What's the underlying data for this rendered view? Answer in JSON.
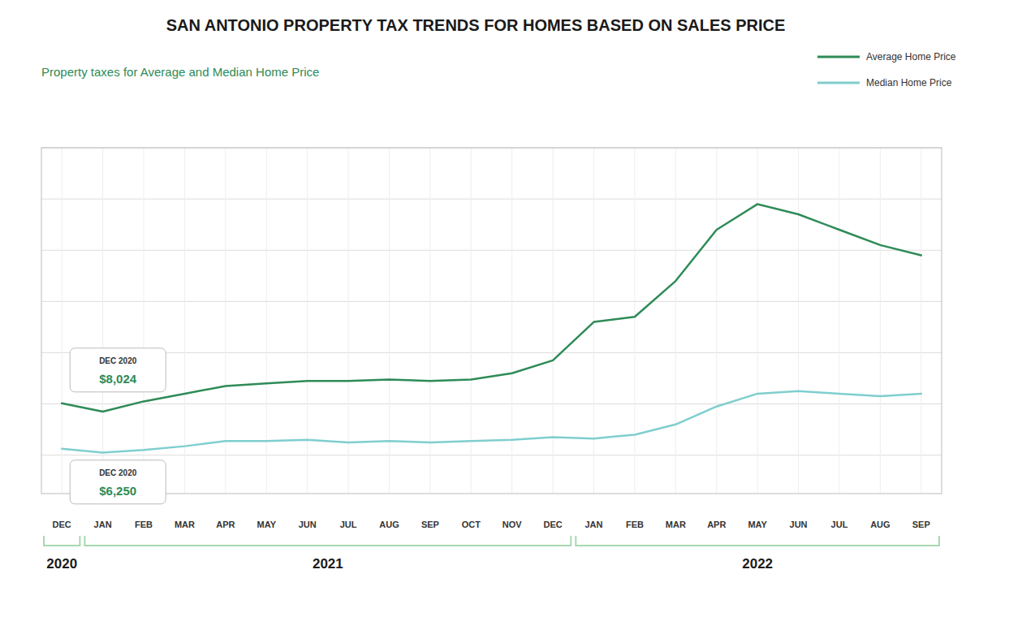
{
  "chart_data": {
    "type": "line",
    "title": "SAN ANTONIO PROPERTY TAX TRENDS FOR HOMES BASED ON SALES PRICE",
    "subtitle": "Property taxes for Average and Median Home Price",
    "categories": [
      "DEC",
      "JAN",
      "FEB",
      "MAR",
      "APR",
      "MAY",
      "JUN",
      "JUL",
      "AUG",
      "SEP",
      "OCT",
      "NOV",
      "DEC",
      "JAN",
      "FEB",
      "MAR",
      "APR",
      "MAY",
      "JUN",
      "JUL",
      "AUG",
      "SEP"
    ],
    "category_groups": [
      {
        "label": "2020",
        "count": 1
      },
      {
        "label": "2021",
        "count": 12
      },
      {
        "label": "2022",
        "count": 9
      }
    ],
    "series": [
      {
        "name": "Average Home Price",
        "color": "#2e8b57",
        "values": [
          8024,
          7700,
          8100,
          8400,
          8700,
          8800,
          8900,
          8900,
          8950,
          8900,
          8950,
          9200,
          9700,
          11200,
          11400,
          12800,
          14800,
          15800,
          15400,
          14800,
          14200,
          13800
        ]
      },
      {
        "name": "Median Home Price",
        "color": "#80cece",
        "values": [
          6250,
          6100,
          6200,
          6350,
          6550,
          6550,
          6600,
          6500,
          6550,
          6500,
          6550,
          6600,
          6700,
          6650,
          6800,
          7200,
          7900,
          8400,
          8500,
          8400,
          8300,
          8400
        ]
      }
    ],
    "annotations": [
      {
        "label": "DEC 2020",
        "text": "$8,024",
        "x": 0,
        "y": 8024,
        "color": "#2e8b57"
      },
      {
        "label": "DEC 2020",
        "text": "$6,250",
        "x": 0,
        "y": 6250,
        "color": "#2e8b57"
      }
    ],
    "ylim": [
      4500,
      18000
    ],
    "yticks": [
      6000,
      8000,
      10000,
      12000,
      14000,
      16000,
      18000
    ],
    "grid": true,
    "legend": "upper right",
    "tick_labels": "x"
  }
}
